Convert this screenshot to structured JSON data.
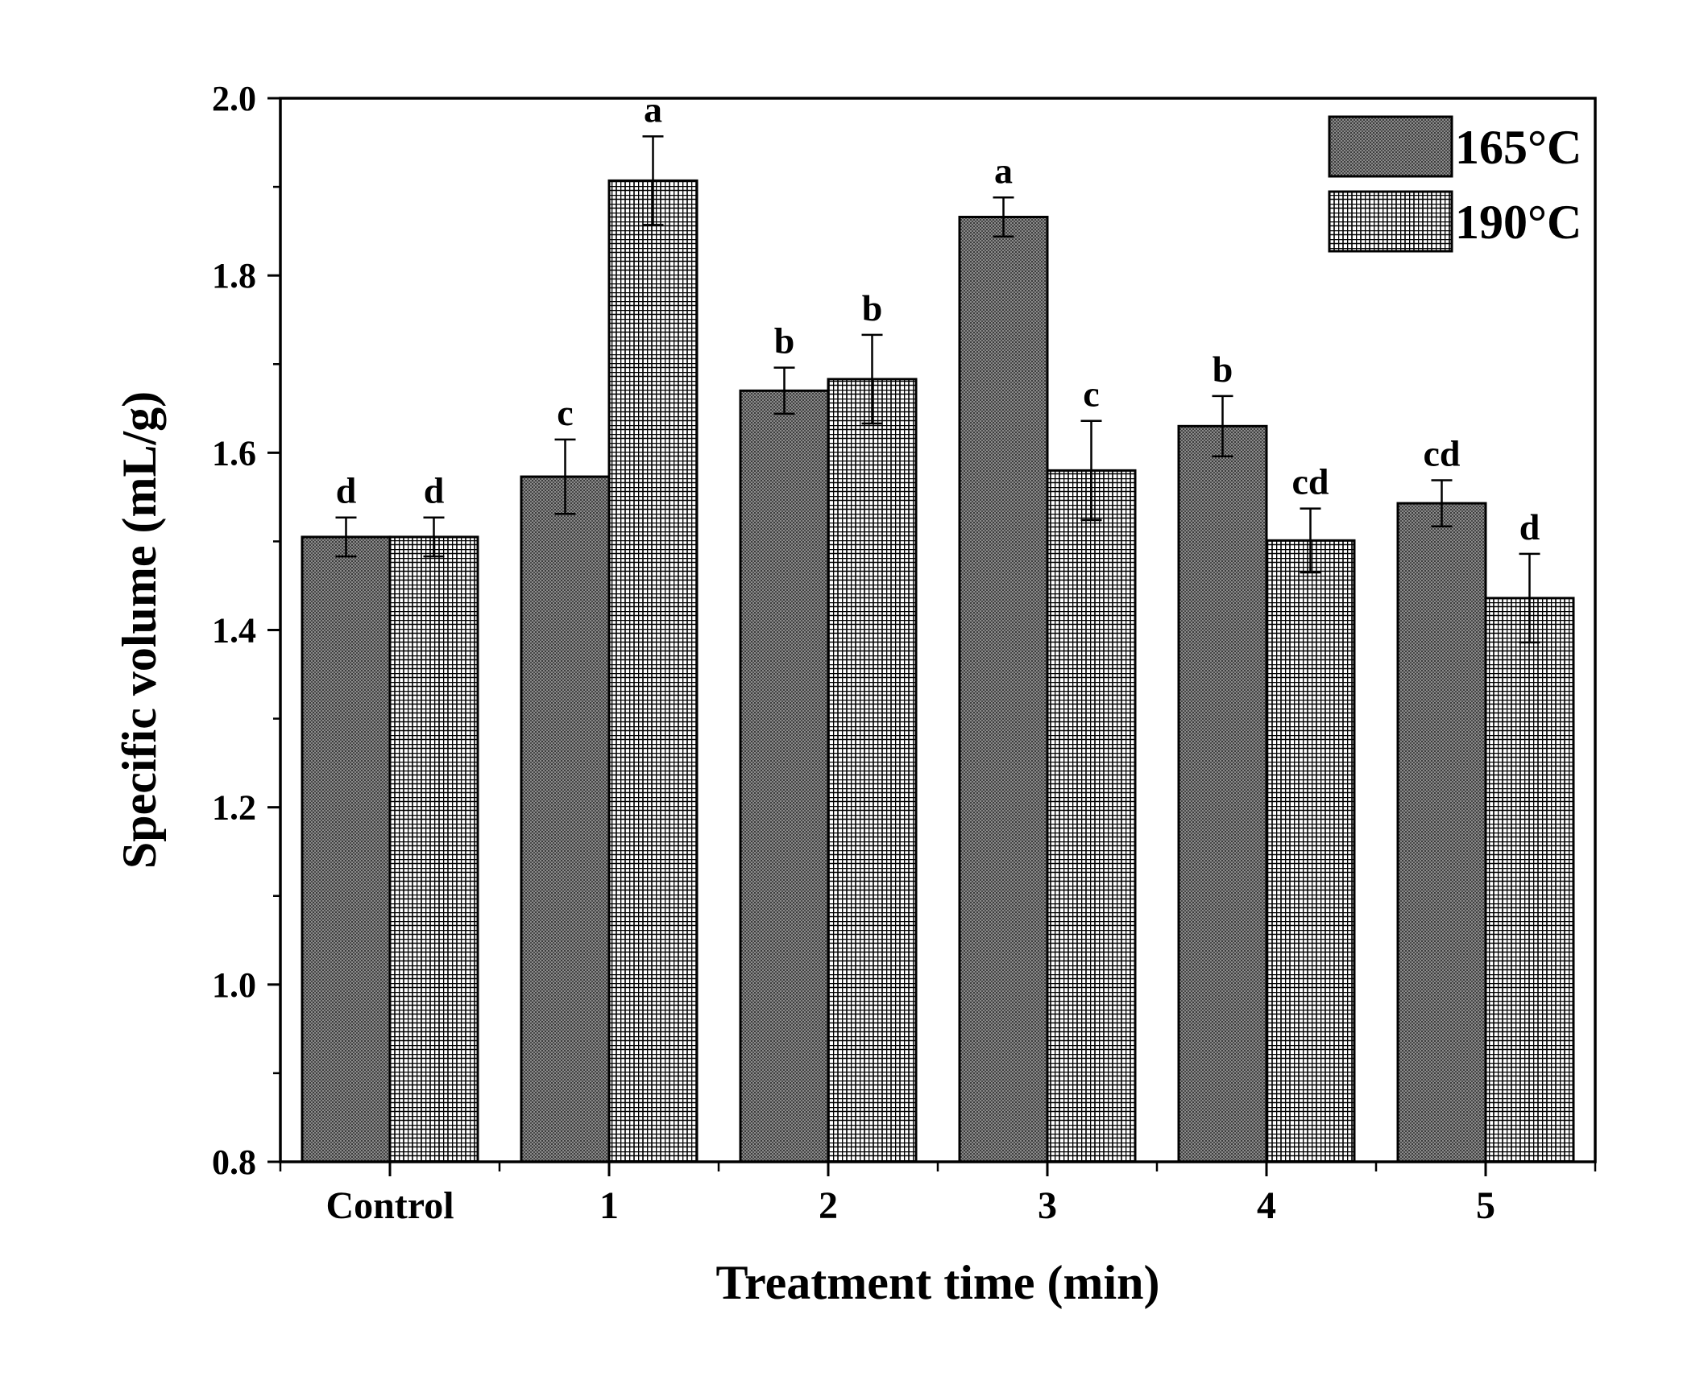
{
  "chart_data": {
    "type": "bar",
    "xlabel": "Treatment time (min)",
    "ylabel": "Specific volume (mL/g)",
    "categories": [
      "Control",
      "1",
      "2",
      "3",
      "4",
      "5"
    ],
    "ylim": [
      0.8,
      2.0
    ],
    "yticks": [
      "0.8",
      "1.0",
      "1.2",
      "1.4",
      "1.6",
      "1.8",
      "2.0"
    ],
    "grid": false,
    "legend_position": "top-right",
    "series": [
      {
        "name": "165°C",
        "values": [
          1.505,
          1.573,
          1.67,
          1.866,
          1.63,
          1.543
        ],
        "errors": [
          0.022,
          0.042,
          0.026,
          0.022,
          0.034,
          0.026
        ],
        "labels": [
          "d",
          "c",
          "b",
          "a",
          "b",
          "cd"
        ],
        "pattern": "dense-stipple",
        "color": "#6e6e6e"
      },
      {
        "name": "190°C",
        "values": [
          1.505,
          1.907,
          1.683,
          1.58,
          1.501,
          1.436
        ],
        "errors": [
          0.022,
          0.05,
          0.05,
          0.056,
          0.036,
          0.05
        ],
        "labels": [
          "d",
          "a",
          "b",
          "c",
          "cd",
          "d"
        ],
        "pattern": "grid",
        "color": "#000000"
      }
    ]
  }
}
